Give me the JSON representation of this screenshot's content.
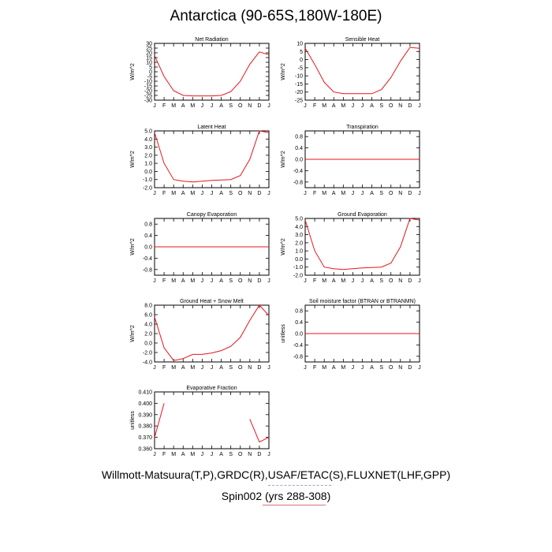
{
  "title": "Antarctica (90-65S,180W-180E)",
  "footer": {
    "line1": "Willmott-Matsuura(T,P),GRDC(R),USAF/ETAC(S),FLUXNET(LHF,GPP)",
    "line2": "Spin002 (yrs 288-308)"
  },
  "colors": {
    "series": "#e8141c",
    "axis": "#000000"
  },
  "chart_data": [
    {
      "type": "line",
      "title": "Net Radiation",
      "ylabel": "W/m^2",
      "x": [
        "J",
        "F",
        "M",
        "A",
        "M",
        "J",
        "J",
        "A",
        "S",
        "O",
        "N",
        "D",
        "J"
      ],
      "yticks": [
        30,
        25,
        20,
        15,
        10,
        5,
        0,
        -5,
        -10,
        -15,
        -20,
        -25,
        -30
      ],
      "ylim": [
        -30,
        30
      ],
      "values": [
        17,
        -5,
        -20,
        -25,
        -25.5,
        -25.5,
        -25.5,
        -25,
        -21,
        -10,
        8,
        21,
        18
      ]
    },
    {
      "type": "line",
      "title": "Sensible Heat",
      "ylabel": "W/m^2",
      "x": [
        "J",
        "F",
        "M",
        "A",
        "M",
        "J",
        "J",
        "A",
        "S",
        "O",
        "N",
        "D",
        "J"
      ],
      "yticks": [
        10,
        5,
        0,
        -5,
        -10,
        -15,
        -20,
        -25
      ],
      "ylim": [
        -25,
        10
      ],
      "values": [
        7,
        -3,
        -14,
        -20,
        -21,
        -21,
        -21,
        -21,
        -18.5,
        -11,
        -1,
        7.5,
        7
      ]
    },
    {
      "type": "line",
      "title": "Latent Heat",
      "ylabel": "W/m^2",
      "x": [
        "J",
        "F",
        "M",
        "A",
        "M",
        "J",
        "J",
        "A",
        "S",
        "O",
        "N",
        "D",
        "J"
      ],
      "yticks": [
        "5.0",
        "4.0",
        "3.0",
        "2.0",
        "1.0",
        "0.0",
        "-1.0",
        "-2.0"
      ],
      "ylim": [
        -2,
        5
      ],
      "values": [
        4.8,
        1.0,
        -1.0,
        -1.2,
        -1.3,
        -1.2,
        -1.1,
        -1.05,
        -1.0,
        -0.5,
        1.5,
        5.0,
        4.8
      ]
    },
    {
      "type": "line",
      "title": "Transpiration",
      "ylabel": "W/m^2",
      "x": [
        "J",
        "F",
        "M",
        "A",
        "M",
        "J",
        "J",
        "A",
        "S",
        "O",
        "N",
        "D",
        "J"
      ],
      "yticks": [
        "0.8",
        "0.4",
        "0.0",
        "-0.4",
        "-0.8"
      ],
      "ylim": [
        -1,
        1
      ],
      "values": [
        0,
        0,
        0,
        0,
        0,
        0,
        0,
        0,
        0,
        0,
        0,
        0,
        0
      ]
    },
    {
      "type": "line",
      "title": "Canopy Evaporation",
      "ylabel": "W/m^2",
      "x": [
        "J",
        "F",
        "M",
        "A",
        "M",
        "J",
        "J",
        "A",
        "S",
        "O",
        "N",
        "D",
        "J"
      ],
      "yticks": [
        "0.8",
        "0.4",
        "0.0",
        "-0.4",
        "-0.8"
      ],
      "ylim": [
        -1,
        1
      ],
      "values": [
        0,
        0,
        0,
        0,
        0,
        0,
        0,
        0,
        0,
        0,
        0,
        0,
        0
      ]
    },
    {
      "type": "line",
      "title": "Ground Evaporation",
      "ylabel": "W/m^2",
      "x": [
        "J",
        "F",
        "M",
        "A",
        "M",
        "J",
        "J",
        "A",
        "S",
        "O",
        "N",
        "D",
        "J"
      ],
      "yticks": [
        "5.0",
        "4.0",
        "3.0",
        "2.0",
        "1.0",
        "0.0",
        "-1.0",
        "-2.0"
      ],
      "ylim": [
        -2,
        5
      ],
      "values": [
        4.8,
        1.0,
        -1.0,
        -1.2,
        -1.3,
        -1.2,
        -1.1,
        -1.05,
        -1.0,
        -0.5,
        1.5,
        5.0,
        4.8
      ]
    },
    {
      "type": "line",
      "title": "Ground Heat + Snow Melt",
      "ylabel": "W/m^2",
      "x": [
        "J",
        "F",
        "M",
        "A",
        "M",
        "J",
        "J",
        "A",
        "S",
        "O",
        "N",
        "D",
        "J"
      ],
      "yticks": [
        "8.0",
        "6.0",
        "4.0",
        "2.0",
        "0.0",
        "-2.0",
        "-4.0"
      ],
      "ylim": [
        -4,
        8
      ],
      "values": [
        5.5,
        -1.0,
        -3.7,
        -3.3,
        -2.4,
        -2.4,
        -2.1,
        -1.6,
        -0.7,
        1.2,
        4.8,
        8.0,
        5.8
      ]
    },
    {
      "type": "line",
      "title": "Soil moisture factor (BTRAN or BTRANMN)",
      "ylabel": "unitless",
      "x": [
        "J",
        "F",
        "M",
        "A",
        "M",
        "J",
        "J",
        "A",
        "S",
        "O",
        "N",
        "D",
        "J"
      ],
      "yticks": [
        "0.8",
        "0.4",
        "0.0",
        "-0.4",
        "-0.8"
      ],
      "ylim": [
        -1,
        1
      ],
      "values": [
        0,
        0,
        0,
        0,
        0,
        0,
        0,
        0,
        0,
        0,
        0,
        0,
        0
      ]
    },
    {
      "type": "line",
      "title": "Evaporative Fraction",
      "ylabel": "unitless",
      "x": [
        "J",
        "F",
        "M",
        "A",
        "M",
        "J",
        "J",
        "A",
        "S",
        "O",
        "N",
        "D",
        "J"
      ],
      "yticks": [
        "0.410",
        "0.400",
        "0.390",
        "0.380",
        "0.370",
        "0.360"
      ],
      "ylim": [
        0.36,
        0.41
      ],
      "values": [
        0.37,
        0.4,
        null,
        null,
        null,
        null,
        null,
        null,
        null,
        null,
        0.386,
        0.366,
        0.37
      ]
    }
  ]
}
